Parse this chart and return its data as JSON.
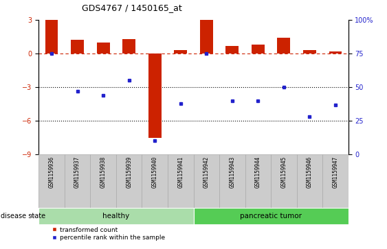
{
  "title": "GDS4767 / 1450165_at",
  "samples": [
    "GSM1159936",
    "GSM1159937",
    "GSM1159938",
    "GSM1159939",
    "GSM1159940",
    "GSM1159941",
    "GSM1159942",
    "GSM1159943",
    "GSM1159944",
    "GSM1159945",
    "GSM1159946",
    "GSM1159947"
  ],
  "transformed_count": [
    3.0,
    1.2,
    1.0,
    1.3,
    -7.5,
    0.3,
    3.0,
    0.7,
    0.8,
    1.4,
    0.3,
    0.2
  ],
  "percentile_rank": [
    75,
    47,
    44,
    55,
    10,
    38,
    75,
    40,
    40,
    50,
    28,
    37
  ],
  "disease_state": [
    "healthy",
    "healthy",
    "healthy",
    "healthy",
    "healthy",
    "healthy",
    "pancreatic tumor",
    "pancreatic tumor",
    "pancreatic tumor",
    "pancreatic tumor",
    "pancreatic tumor",
    "pancreatic tumor"
  ],
  "bar_color": "#cc2200",
  "dot_color": "#2222cc",
  "ylim_left": [
    -9,
    3
  ],
  "ylim_right": [
    0,
    100
  ],
  "yticks_left": [
    -9,
    -6,
    -3,
    0,
    3
  ],
  "yticks_right": [
    0,
    25,
    50,
    75,
    100
  ],
  "dotted_lines": [
    -3,
    -6
  ],
  "healthy_color": "#aaddaa",
  "tumor_color": "#55cc55",
  "healthy_label": "healthy",
  "tumor_label": "pancreatic tumor",
  "disease_state_label": "disease state",
  "legend_bar_label": "transformed count",
  "legend_dot_label": "percentile rank within the sample",
  "background_color": "#ffffff",
  "sample_box_color": "#cccccc",
  "sample_box_edge": "#aaaaaa"
}
